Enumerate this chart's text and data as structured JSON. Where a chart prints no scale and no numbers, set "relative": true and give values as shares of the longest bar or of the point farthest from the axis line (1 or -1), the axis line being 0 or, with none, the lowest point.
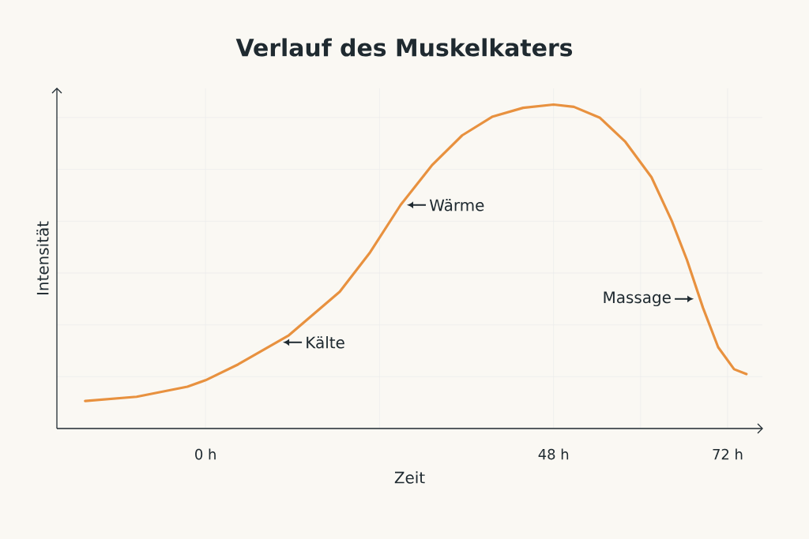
{
  "chart_data": {
    "type": "line",
    "title": "Verlauf des Muskelkaters",
    "xlabel": "Zeit",
    "ylabel": "Intensität",
    "relative": true,
    "grid": true,
    "color": "#e8913f",
    "xlim": [
      -20.5,
      76.8
    ],
    "xticks": [
      {
        "value": 0,
        "label": "0 h"
      },
      {
        "value": 24,
        "label": null
      },
      {
        "value": 48,
        "label": "48 h"
      },
      {
        "value": 60,
        "label": null
      },
      {
        "value": 72,
        "label": "72 h"
      }
    ],
    "x": [
      -16.6,
      -9.5,
      -2.5,
      0,
      4.5,
      11.5,
      18.5,
      22.7,
      26.9,
      31.2,
      35.4,
      39.6,
      43.8,
      48,
      50.8,
      54.4,
      57.9,
      61.5,
      64.3,
      66.4,
      68.6,
      70.7,
      72.9,
      74.6
    ],
    "values": [
      0.085,
      0.098,
      0.129,
      0.149,
      0.198,
      0.288,
      0.422,
      0.544,
      0.69,
      0.812,
      0.905,
      0.963,
      0.99,
      1.0,
      0.993,
      0.959,
      0.885,
      0.776,
      0.641,
      0.52,
      0.373,
      0.251,
      0.183,
      0.168
    ],
    "annotations": [
      {
        "text": "Wärme",
        "x": 26.9,
        "y": 0.69
      },
      {
        "text": "Kälte",
        "x": 9.8,
        "y": 0.266
      },
      {
        "text": "Massage",
        "x": 68.2,
        "y": 0.4
      }
    ]
  }
}
